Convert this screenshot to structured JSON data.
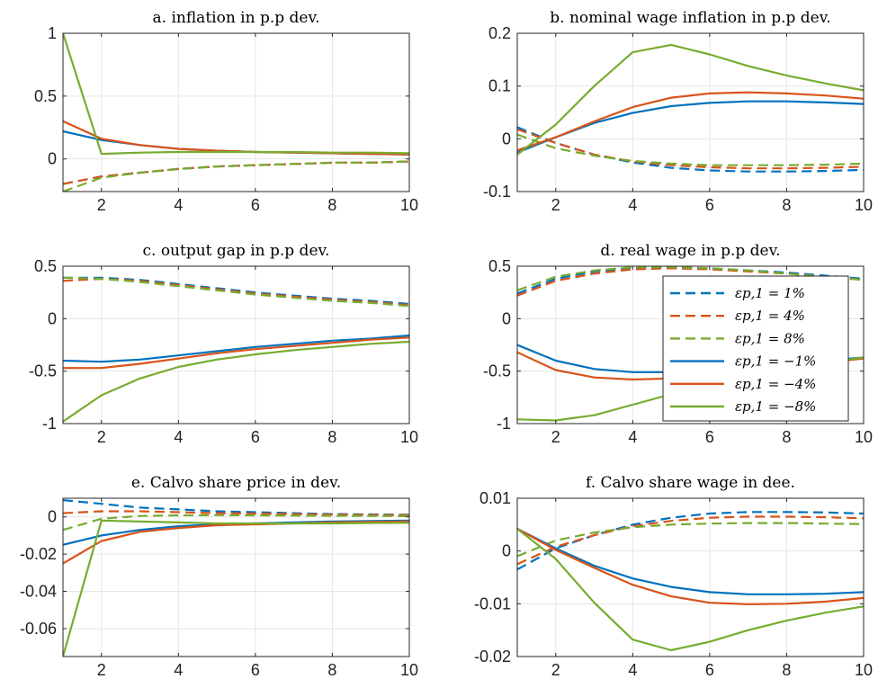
{
  "colors": {
    "blue": "#0072BD",
    "red": "#D95319",
    "green": "#77AC30",
    "grid": "#e6e6e6",
    "axis": "#262626"
  },
  "legend": {
    "entries": [
      {
        "label": "εp,1 = 1%",
        "color": "#0072BD",
        "dash": true
      },
      {
        "label": "εp,1 = 4%",
        "color": "#D95319",
        "dash": true
      },
      {
        "label": "εp,1 = 8%",
        "color": "#77AC30",
        "dash": true
      },
      {
        "label": "εp,1 = −1%",
        "color": "#0072BD",
        "dash": false
      },
      {
        "label": "εp,1 = −4%",
        "color": "#D95319",
        "dash": false
      },
      {
        "label": "εp,1 = −8%",
        "color": "#77AC30",
        "dash": false
      }
    ]
  },
  "chart_data": [
    {
      "type": "line",
      "title": "a. inflation in p.p dev.",
      "x": [
        1,
        2,
        3,
        4,
        5,
        6,
        7,
        8,
        9,
        10
      ],
      "xlim": [
        1,
        10
      ],
      "ylim": [
        -0.26,
        1.0
      ],
      "xticks": [
        2,
        4,
        6,
        8,
        10
      ],
      "yticks": [
        0,
        0.5,
        1
      ],
      "yticklabels": [
        "0",
        "0.5",
        "1"
      ],
      "grid": true,
      "series": [
        {
          "color": "blue",
          "dash": true,
          "values": [
            -0.2,
            -0.14,
            -0.11,
            -0.08,
            -0.06,
            -0.05,
            -0.04,
            -0.03,
            -0.03,
            -0.02
          ]
        },
        {
          "color": "red",
          "dash": true,
          "values": [
            -0.2,
            -0.14,
            -0.11,
            -0.08,
            -0.06,
            -0.05,
            -0.04,
            -0.03,
            -0.03,
            -0.02
          ]
        },
        {
          "color": "green",
          "dash": true,
          "values": [
            -0.26,
            -0.15,
            -0.11,
            -0.08,
            -0.06,
            -0.05,
            -0.04,
            -0.03,
            -0.03,
            -0.02
          ]
        },
        {
          "color": "blue",
          "dash": false,
          "values": [
            0.22,
            0.15,
            0.11,
            0.08,
            0.065,
            0.055,
            0.05,
            0.045,
            0.04,
            0.035
          ]
        },
        {
          "color": "red",
          "dash": false,
          "values": [
            0.3,
            0.16,
            0.11,
            0.08,
            0.065,
            0.055,
            0.05,
            0.045,
            0.04,
            0.035
          ]
        },
        {
          "color": "green",
          "dash": false,
          "values": [
            1.0,
            0.04,
            0.05,
            0.055,
            0.055,
            0.055,
            0.055,
            0.05,
            0.05,
            0.045
          ]
        }
      ]
    },
    {
      "type": "line",
      "title": "b. nominal wage inflation in p.p dev.",
      "x": [
        1,
        2,
        3,
        4,
        5,
        6,
        7,
        8,
        9,
        10
      ],
      "xlim": [
        1,
        10
      ],
      "ylim": [
        -0.1,
        0.2
      ],
      "xticks": [
        2,
        4,
        6,
        8,
        10
      ],
      "yticks": [
        -0.1,
        0,
        0.1,
        0.2
      ],
      "yticklabels": [
        "-0.1",
        "0",
        "0.1",
        "0.2"
      ],
      "grid": true,
      "series": [
        {
          "color": "blue",
          "dash": true,
          "values": [
            0.022,
            -0.008,
            -0.03,
            -0.045,
            -0.055,
            -0.06,
            -0.062,
            -0.062,
            -0.061,
            -0.059
          ]
        },
        {
          "color": "red",
          "dash": true,
          "values": [
            0.018,
            -0.008,
            -0.03,
            -0.043,
            -0.05,
            -0.054,
            -0.056,
            -0.056,
            -0.055,
            -0.053
          ]
        },
        {
          "color": "green",
          "dash": true,
          "values": [
            0.008,
            -0.018,
            -0.032,
            -0.042,
            -0.047,
            -0.05,
            -0.05,
            -0.05,
            -0.049,
            -0.047
          ]
        },
        {
          "color": "blue",
          "dash": false,
          "values": [
            -0.026,
            0.003,
            0.03,
            0.049,
            0.062,
            0.068,
            0.071,
            0.071,
            0.069,
            0.066
          ]
        },
        {
          "color": "red",
          "dash": false,
          "values": [
            -0.022,
            0.003,
            0.033,
            0.06,
            0.078,
            0.086,
            0.088,
            0.086,
            0.082,
            0.076
          ]
        },
        {
          "color": "green",
          "dash": false,
          "values": [
            -0.03,
            0.027,
            0.1,
            0.164,
            0.178,
            0.16,
            0.138,
            0.12,
            0.105,
            0.092
          ]
        }
      ]
    },
    {
      "type": "line",
      "title": "c. output gap in p.p dev.",
      "x": [
        1,
        2,
        3,
        4,
        5,
        6,
        7,
        8,
        9,
        10
      ],
      "xlim": [
        1,
        10
      ],
      "ylim": [
        -1,
        0.5
      ],
      "xticks": [
        2,
        4,
        6,
        8,
        10
      ],
      "yticks": [
        -1,
        -0.5,
        0,
        0.5
      ],
      "yticklabels": [
        "-1",
        "-0.5",
        "0",
        "0.5"
      ],
      "grid": true,
      "series": [
        {
          "color": "blue",
          "dash": true,
          "values": [
            0.39,
            0.39,
            0.37,
            0.33,
            0.29,
            0.25,
            0.22,
            0.19,
            0.17,
            0.14
          ]
        },
        {
          "color": "red",
          "dash": true,
          "values": [
            0.36,
            0.38,
            0.36,
            0.32,
            0.28,
            0.24,
            0.21,
            0.18,
            0.16,
            0.13
          ]
        },
        {
          "color": "green",
          "dash": true,
          "values": [
            0.39,
            0.38,
            0.35,
            0.31,
            0.27,
            0.23,
            0.2,
            0.17,
            0.15,
            0.12
          ]
        },
        {
          "color": "blue",
          "dash": false,
          "values": [
            -0.4,
            -0.41,
            -0.39,
            -0.35,
            -0.31,
            -0.27,
            -0.24,
            -0.21,
            -0.19,
            -0.16
          ]
        },
        {
          "color": "red",
          "dash": false,
          "values": [
            -0.47,
            -0.47,
            -0.43,
            -0.38,
            -0.33,
            -0.29,
            -0.26,
            -0.23,
            -0.2,
            -0.18
          ]
        },
        {
          "color": "green",
          "dash": false,
          "values": [
            -0.98,
            -0.73,
            -0.57,
            -0.46,
            -0.39,
            -0.34,
            -0.3,
            -0.27,
            -0.24,
            -0.22
          ]
        }
      ]
    },
    {
      "type": "line",
      "title": "d. real wage in p.p dev.",
      "x": [
        1,
        2,
        3,
        4,
        5,
        6,
        7,
        8,
        9,
        10
      ],
      "xlim": [
        1,
        10
      ],
      "ylim": [
        -1,
        0.5
      ],
      "xticks": [
        2,
        4,
        6,
        8,
        10
      ],
      "yticks": [
        -1,
        -0.5,
        0,
        0.5
      ],
      "yticklabels": [
        "-1",
        "-0.5",
        "0",
        "0.5"
      ],
      "grid": true,
      "series": [
        {
          "color": "blue",
          "dash": true,
          "values": [
            0.24,
            0.38,
            0.45,
            0.48,
            0.49,
            0.48,
            0.46,
            0.44,
            0.41,
            0.38
          ]
        },
        {
          "color": "red",
          "dash": true,
          "values": [
            0.22,
            0.36,
            0.43,
            0.47,
            0.48,
            0.47,
            0.45,
            0.43,
            0.4,
            0.37
          ]
        },
        {
          "color": "green",
          "dash": true,
          "values": [
            0.27,
            0.4,
            0.46,
            0.49,
            0.49,
            0.48,
            0.46,
            0.43,
            0.4,
            0.37
          ]
        },
        {
          "color": "blue",
          "dash": false,
          "values": [
            -0.25,
            -0.4,
            -0.48,
            -0.51,
            -0.51,
            -0.49,
            -0.46,
            -0.43,
            -0.4,
            -0.37
          ]
        },
        {
          "color": "red",
          "dash": false,
          "values": [
            -0.32,
            -0.49,
            -0.56,
            -0.58,
            -0.57,
            -0.54,
            -0.5,
            -0.46,
            -0.42,
            -0.38
          ]
        },
        {
          "color": "green",
          "dash": false,
          "values": [
            -0.96,
            -0.97,
            -0.92,
            -0.82,
            -0.72,
            -0.63,
            -0.55,
            -0.48,
            -0.42,
            -0.37
          ]
        }
      ]
    },
    {
      "type": "line",
      "title": "e. Calvo share price in dev.",
      "x": [
        1,
        2,
        3,
        4,
        5,
        6,
        7,
        8,
        9,
        10
      ],
      "xlim": [
        1,
        10
      ],
      "ylim": [
        -0.075,
        0.01
      ],
      "xticks": [
        2,
        4,
        6,
        8,
        10
      ],
      "yticks": [
        -0.06,
        -0.04,
        -0.02,
        0
      ],
      "yticklabels": [
        "-0.06",
        "-0.04",
        "-0.02",
        "0"
      ],
      "grid": true,
      "series": [
        {
          "color": "blue",
          "dash": true,
          "values": [
            0.009,
            0.007,
            0.005,
            0.004,
            0.003,
            0.0025,
            0.002,
            0.0015,
            0.0013,
            0.0011
          ]
        },
        {
          "color": "red",
          "dash": true,
          "values": [
            0.002,
            0.003,
            0.003,
            0.0025,
            0.002,
            0.0018,
            0.0015,
            0.0012,
            0.001,
            0.0009
          ]
        },
        {
          "color": "green",
          "dash": true,
          "values": [
            -0.007,
            -0.001,
            0.0005,
            0.0008,
            0.0009,
            0.0008,
            0.0007,
            0.0006,
            0.0005,
            0.0004
          ]
        },
        {
          "color": "blue",
          "dash": false,
          "values": [
            -0.015,
            -0.01,
            -0.007,
            -0.005,
            -0.004,
            -0.0035,
            -0.003,
            -0.0025,
            -0.0022,
            -0.002
          ]
        },
        {
          "color": "red",
          "dash": false,
          "values": [
            -0.025,
            -0.013,
            -0.008,
            -0.006,
            -0.0045,
            -0.004,
            -0.0035,
            -0.003,
            -0.0027,
            -0.0025
          ]
        },
        {
          "color": "green",
          "dash": false,
          "values": [
            -0.075,
            -0.002,
            -0.0025,
            -0.003,
            -0.0035,
            -0.0035,
            -0.0035,
            -0.0035,
            -0.0033,
            -0.0032
          ]
        }
      ]
    },
    {
      "type": "line",
      "title": "f. Calvo share wage in dee.",
      "x": [
        1,
        2,
        3,
        4,
        5,
        6,
        7,
        8,
        9,
        10
      ],
      "xlim": [
        1,
        10
      ],
      "ylim": [
        -0.02,
        0.01
      ],
      "xticks": [
        2,
        4,
        6,
        8,
        10
      ],
      "yticks": [
        -0.02,
        -0.01,
        0,
        0.01
      ],
      "yticklabels": [
        "-0.02",
        "-0.01",
        "0",
        "0.01"
      ],
      "grid": true,
      "series": [
        {
          "color": "blue",
          "dash": true,
          "values": [
            -0.0035,
            0.0005,
            0.003,
            0.005,
            0.0063,
            0.0071,
            0.0074,
            0.0074,
            0.0073,
            0.0071
          ]
        },
        {
          "color": "red",
          "dash": true,
          "values": [
            -0.0025,
            0.0008,
            0.003,
            0.0047,
            0.0057,
            0.0063,
            0.0065,
            0.0065,
            0.0064,
            0.0062
          ]
        },
        {
          "color": "green",
          "dash": true,
          "values": [
            -0.001,
            0.002,
            0.0035,
            0.0045,
            0.005,
            0.0052,
            0.0053,
            0.0053,
            0.0052,
            0.0051
          ]
        },
        {
          "color": "blue",
          "dash": false,
          "values": [
            0.0042,
            0.0005,
            -0.0028,
            -0.0052,
            -0.0068,
            -0.0078,
            -0.0082,
            -0.0082,
            -0.0081,
            -0.0078
          ]
        },
        {
          "color": "red",
          "dash": false,
          "values": [
            0.0042,
            0.0002,
            -0.0032,
            -0.0064,
            -0.0086,
            -0.0098,
            -0.0101,
            -0.01,
            -0.0096,
            -0.0089
          ]
        },
        {
          "color": "green",
          "dash": false,
          "values": [
            0.0042,
            -0.0015,
            -0.0098,
            -0.0168,
            -0.0188,
            -0.0172,
            -0.015,
            -0.0132,
            -0.0117,
            -0.0105
          ]
        }
      ]
    }
  ]
}
